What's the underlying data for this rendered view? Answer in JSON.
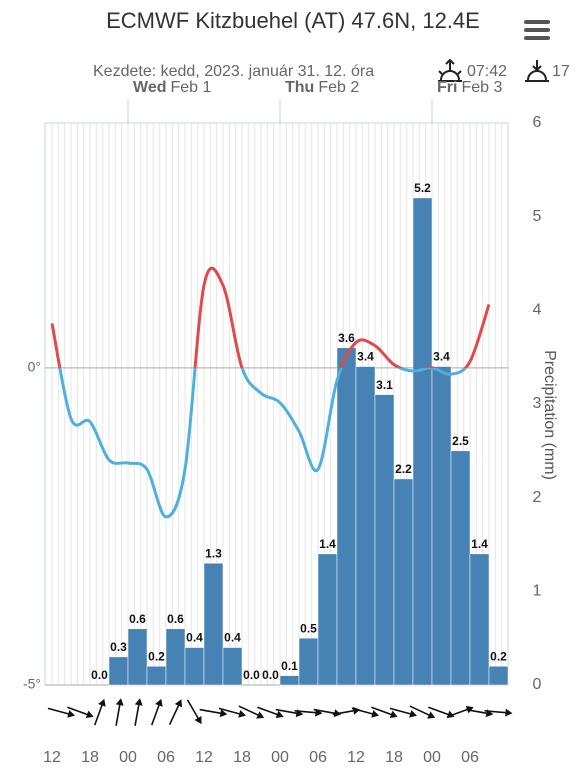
{
  "chart_data": {
    "type": "meteogram",
    "title": "ECMWF Kitzbuehel (AT) 47.6N, 12.4E",
    "subtitle": "Kezdete: kedd, 2023. január 31. 12. óra",
    "sunrise": "07:42",
    "sunset": "17",
    "days": [
      {
        "day": "Wed",
        "date": "Feb 1"
      },
      {
        "day": "Thu",
        "date": "Feb 2"
      },
      {
        "day": "Fri",
        "date": "Feb 3"
      }
    ],
    "categories": [
      "12",
      null,
      "18",
      null,
      "00",
      null,
      "06",
      null,
      "12",
      null,
      "18",
      null,
      "00",
      null,
      "06",
      null,
      "12",
      null,
      "18",
      null,
      "00",
      null,
      "06",
      null
    ],
    "ylim": [
      -5,
      3.86
    ],
    "yticks": [
      {
        "value": 0,
        "label": "0°"
      },
      {
        "value": -5,
        "label": "-5°"
      }
    ],
    "y2lim": [
      0,
      6
    ],
    "y2ticks": [
      0,
      1,
      2,
      3,
      4,
      5,
      6
    ],
    "y2label": "Precipitation (mm)",
    "series": [
      {
        "name": "Temperature",
        "type": "line",
        "color": "#e04a4a",
        "color_below": "#4fb0e0",
        "values": [
          0.7,
          -0.8,
          -0.85,
          -1.45,
          -1.5,
          -1.6,
          -2.35,
          -1.6,
          1.3,
          1.3,
          0,
          -0.4,
          -0.55,
          -1.0,
          -1.6,
          -0.2,
          0.4,
          0.35,
          0.05,
          -0.05,
          0,
          -0.1,
          0.1,
          1.0
        ]
      },
      {
        "name": "Precipitation",
        "type": "bar",
        "axis": "y2",
        "color": "#4682b4",
        "values": [
          null,
          null,
          0,
          0.3,
          0.6,
          0.2,
          0.6,
          0.4,
          1.3,
          0.4,
          0,
          0,
          0.1,
          0.5,
          1.4,
          3.6,
          3.4,
          3.1,
          2.2,
          5.2,
          3.4,
          2.5,
          1.4,
          0.2
        ],
        "value_labels": [
          null,
          null,
          "0.0",
          "0.3",
          "0.6",
          "0.2",
          "0.6",
          "0.4",
          "1.3",
          "0.4",
          "0.0",
          "0.0",
          "0.1",
          "0.5",
          "1.4",
          "3.6",
          "3.4",
          "3.1",
          "2.2",
          "5.2",
          "3.4",
          "2.5",
          "1.4",
          "0.2"
        ]
      }
    ],
    "wind_arrow_angles": [
      15,
      20,
      -70,
      -80,
      -80,
      -70,
      -65,
      60,
      10,
      15,
      25,
      20,
      10,
      5,
      10,
      -10,
      15,
      20,
      15,
      25,
      20,
      -20,
      10,
      5
    ]
  }
}
